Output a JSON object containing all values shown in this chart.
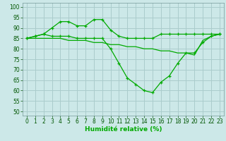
{
  "xlabel": "Humidité relative (%)",
  "background_color": "#cce8e8",
  "grid_color": "#aacccc",
  "line_color": "#00aa00",
  "xlim": [
    -0.5,
    23.5
  ],
  "ylim": [
    48,
    102
  ],
  "yticks": [
    50,
    55,
    60,
    65,
    70,
    75,
    80,
    85,
    90,
    95,
    100
  ],
  "xticks": [
    0,
    1,
    2,
    3,
    4,
    5,
    6,
    7,
    8,
    9,
    10,
    11,
    12,
    13,
    14,
    15,
    16,
    17,
    18,
    19,
    20,
    21,
    22,
    23
  ],
  "line1_x": [
    0,
    1,
    2,
    3,
    4,
    5,
    6,
    7,
    8,
    9,
    10,
    11,
    12,
    13,
    14,
    15,
    16,
    17,
    18,
    19,
    20,
    21,
    22,
    23
  ],
  "line1_y": [
    85,
    86,
    87,
    90,
    93,
    93,
    91,
    91,
    94,
    94,
    89,
    86,
    85,
    85,
    85,
    85,
    87,
    87,
    87,
    87,
    87,
    87,
    87,
    87
  ],
  "line2_x": [
    0,
    1,
    2,
    3,
    4,
    5,
    6,
    7,
    8,
    9,
    10,
    11,
    12,
    13,
    14,
    15,
    16,
    17,
    18,
    19,
    20,
    21,
    22,
    23
  ],
  "line2_y": [
    85,
    86,
    87,
    86,
    86,
    86,
    85,
    85,
    85,
    85,
    80,
    73,
    66,
    63,
    60,
    59,
    64,
    67,
    73,
    78,
    78,
    83,
    86,
    87
  ],
  "line3_x": [
    0,
    1,
    2,
    3,
    4,
    5,
    6,
    7,
    8,
    9,
    10,
    11,
    12,
    13,
    14,
    15,
    16,
    17,
    18,
    19,
    20,
    21,
    22,
    23
  ],
  "line3_y": [
    85,
    85,
    85,
    85,
    85,
    84,
    84,
    84,
    83,
    83,
    82,
    82,
    81,
    81,
    80,
    80,
    79,
    79,
    78,
    78,
    77,
    84,
    86,
    87
  ]
}
